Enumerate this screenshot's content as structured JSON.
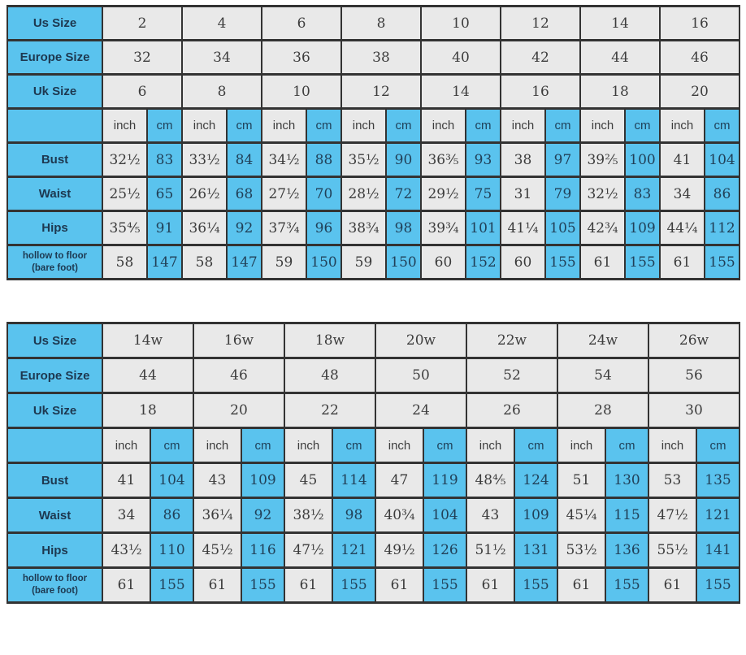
{
  "colors": {
    "cell_blue": "#5ac3ee",
    "cell_gray": "#e9e9e9",
    "border": "#333333",
    "label_text": "#1d3850",
    "value_text_gray_cell": "#3b3b3b",
    "value_text_blue_cell": "#214058",
    "page_background": "#ffffff"
  },
  "chart_data": [
    {
      "type": "table",
      "title": "Regular sizes chart",
      "unit_labels": [
        "inch",
        "cm"
      ],
      "size_rows": [
        {
          "label": "Us Size",
          "values": [
            "2",
            "4",
            "6",
            "8",
            "10",
            "12",
            "14",
            "16"
          ]
        },
        {
          "label": "Europe Size",
          "values": [
            "32",
            "34",
            "36",
            "38",
            "40",
            "42",
            "44",
            "46"
          ]
        },
        {
          "label": "Uk Size",
          "values": [
            "6",
            "8",
            "10",
            "12",
            "14",
            "16",
            "18",
            "20"
          ]
        }
      ],
      "measure_rows": [
        {
          "label": "Bust",
          "pairs": [
            [
              "32½",
              "83"
            ],
            [
              "33½",
              "84"
            ],
            [
              "34½",
              "88"
            ],
            [
              "35½",
              "90"
            ],
            [
              "36⅗",
              "93"
            ],
            [
              "38",
              "97"
            ],
            [
              "39⅖",
              "100"
            ],
            [
              "41",
              "104"
            ]
          ]
        },
        {
          "label": "Waist",
          "pairs": [
            [
              "25½",
              "65"
            ],
            [
              "26½",
              "68"
            ],
            [
              "27½",
              "70"
            ],
            [
              "28½",
              "72"
            ],
            [
              "29½",
              "75"
            ],
            [
              "31",
              "79"
            ],
            [
              "32½",
              "83"
            ],
            [
              "34",
              "86"
            ]
          ]
        },
        {
          "label": "Hips",
          "pairs": [
            [
              "35⅘",
              "91"
            ],
            [
              "36¼",
              "92"
            ],
            [
              "37¾",
              "96"
            ],
            [
              "38¾",
              "98"
            ],
            [
              "39¾",
              "101"
            ],
            [
              "41¼",
              "105"
            ],
            [
              "42¾",
              "109"
            ],
            [
              "44¼",
              "112"
            ]
          ]
        },
        {
          "label": "hollow to floor\n(bare foot)",
          "pairs": [
            [
              "58",
              "147"
            ],
            [
              "58",
              "147"
            ],
            [
              "59",
              "150"
            ],
            [
              "59",
              "150"
            ],
            [
              "60",
              "152"
            ],
            [
              "60",
              "155"
            ],
            [
              "61",
              "155"
            ],
            [
              "61",
              "155"
            ]
          ]
        }
      ]
    },
    {
      "type": "table",
      "title": "Plus sizes chart",
      "unit_labels": [
        "inch",
        "cm"
      ],
      "size_rows": [
        {
          "label": "Us Size",
          "values": [
            "14w",
            "16w",
            "18w",
            "20w",
            "22w",
            "24w",
            "26w"
          ]
        },
        {
          "label": "Europe Size",
          "values": [
            "44",
            "46",
            "48",
            "50",
            "52",
            "54",
            "56"
          ]
        },
        {
          "label": "Uk Size",
          "values": [
            "18",
            "20",
            "22",
            "24",
            "26",
            "28",
            "30"
          ]
        }
      ],
      "measure_rows": [
        {
          "label": "Bust",
          "pairs": [
            [
              "41",
              "104"
            ],
            [
              "43",
              "109"
            ],
            [
              "45",
              "114"
            ],
            [
              "47",
              "119"
            ],
            [
              "48⅘",
              "124"
            ],
            [
              "51",
              "130"
            ],
            [
              "53",
              "135"
            ]
          ]
        },
        {
          "label": "Waist",
          "pairs": [
            [
              "34",
              "86"
            ],
            [
              "36¼",
              "92"
            ],
            [
              "38½",
              "98"
            ],
            [
              "40¾",
              "104"
            ],
            [
              "43",
              "109"
            ],
            [
              "45¼",
              "115"
            ],
            [
              "47½",
              "121"
            ]
          ]
        },
        {
          "label": "Hips",
          "pairs": [
            [
              "43½",
              "110"
            ],
            [
              "45½",
              "116"
            ],
            [
              "47½",
              "121"
            ],
            [
              "49½",
              "126"
            ],
            [
              "51½",
              "131"
            ],
            [
              "53½",
              "136"
            ],
            [
              "55½",
              "141"
            ]
          ]
        },
        {
          "label": "hollow to floor\n(bare foot)",
          "pairs": [
            [
              "61",
              "155"
            ],
            [
              "61",
              "155"
            ],
            [
              "61",
              "155"
            ],
            [
              "61",
              "155"
            ],
            [
              "61",
              "155"
            ],
            [
              "61",
              "155"
            ],
            [
              "61",
              "155"
            ]
          ]
        }
      ]
    }
  ]
}
